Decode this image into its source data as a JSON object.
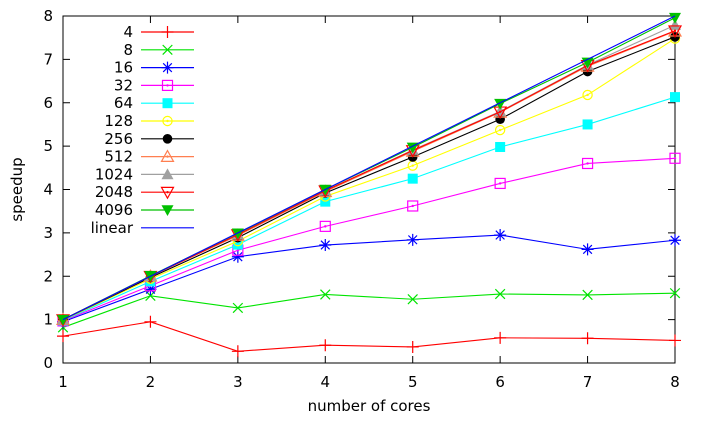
{
  "chart_data": {
    "type": "line",
    "title": "",
    "xlabel": "number of cores",
    "ylabel": "speedup",
    "x": [
      1,
      2,
      3,
      4,
      5,
      6,
      7,
      8
    ],
    "xlim": [
      1,
      8
    ],
    "ylim": [
      0,
      8
    ],
    "xticks": [
      1,
      2,
      3,
      4,
      5,
      6,
      7,
      8
    ],
    "yticks": [
      0,
      1,
      2,
      3,
      4,
      5,
      6,
      7,
      8
    ],
    "grid": false,
    "legend_position": "top-left-inside",
    "axis_color": "#000000",
    "background": "#ffffff",
    "series": [
      {
        "name": "4",
        "color": "#ff0000",
        "marker": "plus",
        "values": [
          0.62,
          0.95,
          0.27,
          0.41,
          0.37,
          0.58,
          0.57,
          0.52
        ]
      },
      {
        "name": "8",
        "color": "#00e400",
        "marker": "x",
        "values": [
          0.82,
          1.55,
          1.27,
          1.58,
          1.47,
          1.59,
          1.57,
          1.61
        ]
      },
      {
        "name": "16",
        "color": "#0000ff",
        "marker": "asterisk",
        "values": [
          0.95,
          1.7,
          2.45,
          2.72,
          2.84,
          2.95,
          2.62,
          2.83
        ]
      },
      {
        "name": "32",
        "color": "#ff00ff",
        "marker": "square-open",
        "values": [
          0.97,
          1.78,
          2.6,
          3.15,
          3.62,
          4.14,
          4.6,
          4.72
        ]
      },
      {
        "name": "64",
        "color": "#00ffff",
        "marker": "square-filled",
        "values": [
          0.98,
          1.88,
          2.73,
          3.72,
          4.25,
          4.98,
          5.5,
          6.13
        ]
      },
      {
        "name": "128",
        "color": "#ffff00",
        "marker": "circle-open",
        "values": [
          0.99,
          1.94,
          2.81,
          3.84,
          4.55,
          5.37,
          6.18,
          7.48
        ]
      },
      {
        "name": "256",
        "color": "#000000",
        "marker": "circle-filled",
        "values": [
          1.0,
          1.97,
          2.89,
          3.92,
          4.75,
          5.62,
          6.72,
          7.52
        ]
      },
      {
        "name": "512",
        "color": "#ff7f50",
        "marker": "triangle-up-open",
        "values": [
          1.0,
          2.0,
          2.94,
          3.95,
          4.88,
          5.78,
          6.84,
          7.65
        ]
      },
      {
        "name": "1024",
        "color": "#a0a0a0",
        "marker": "triangle-up-filled",
        "values": [
          1.0,
          2.0,
          2.96,
          3.97,
          4.91,
          5.8,
          6.87,
          7.79
        ]
      },
      {
        "name": "2048",
        "color": "#ff0000",
        "marker": "triangle-down-open",
        "values": [
          1.0,
          2.0,
          2.96,
          3.97,
          4.9,
          5.79,
          6.86,
          7.66
        ]
      },
      {
        "name": "4096",
        "color": "#00c000",
        "marker": "triangle-down-filled",
        "values": [
          1.0,
          2.01,
          2.99,
          4.0,
          4.97,
          5.98,
          6.93,
          7.96
        ]
      },
      {
        "name": "linear",
        "color": "#0000ff",
        "marker": "none",
        "values": [
          1,
          2,
          3,
          4,
          5,
          6,
          7,
          8
        ]
      }
    ]
  }
}
